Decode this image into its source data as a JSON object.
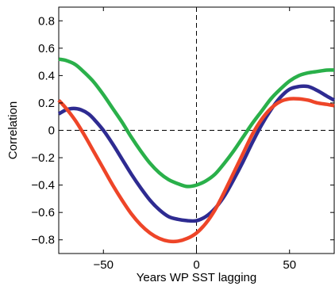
{
  "chart_data": {
    "type": "line",
    "title": "",
    "xlabel": "Years WP SST lagging",
    "ylabel": "Correlation",
    "xlim": [
      -74,
      74
    ],
    "ylim": [
      -0.9,
      0.9
    ],
    "xticks": [
      -50,
      0,
      50
    ],
    "xtick_labels": [
      "−50",
      "0",
      "50"
    ],
    "yticks": [
      0.8,
      0.6,
      0.4,
      0.2,
      0,
      -0.2,
      -0.4,
      -0.6,
      -0.8
    ],
    "ytick_labels": [
      "0.8",
      "0.6",
      "0.4",
      "0.2",
      "0",
      "−0.2",
      "−0.4",
      "−0.6",
      "−0.8"
    ],
    "reference_lines": {
      "y": 0,
      "x": 0,
      "style": "dashed"
    },
    "grid": false,
    "legend": "none",
    "series": [
      {
        "color": "#2ab04a",
        "x": [
          -74,
          -70,
          -65,
          -60,
          -55,
          -50,
          -45,
          -40,
          -35,
          -30,
          -25,
          -20,
          -15,
          -10,
          -5,
          0,
          5,
          10,
          15,
          20,
          25,
          30,
          35,
          40,
          45,
          50,
          55,
          60,
          65,
          70,
          74
        ],
        "y": [
          0.52,
          0.51,
          0.48,
          0.42,
          0.35,
          0.26,
          0.16,
          0.06,
          -0.05,
          -0.15,
          -0.24,
          -0.31,
          -0.36,
          -0.39,
          -0.41,
          -0.4,
          -0.37,
          -0.32,
          -0.24,
          -0.15,
          -0.05,
          0.05,
          0.14,
          0.23,
          0.3,
          0.36,
          0.4,
          0.42,
          0.43,
          0.44,
          0.44
        ]
      },
      {
        "color": "#2e2b91",
        "x": [
          -74,
          -70,
          -66,
          -62,
          -58,
          -55,
          -50,
          -45,
          -40,
          -35,
          -30,
          -25,
          -20,
          -15,
          -10,
          -5,
          0,
          5,
          10,
          15,
          20,
          25,
          30,
          35,
          40,
          45,
          50,
          55,
          60,
          65,
          70,
          74
        ],
        "y": [
          0.12,
          0.15,
          0.16,
          0.15,
          0.12,
          0.08,
          0.0,
          -0.1,
          -0.21,
          -0.32,
          -0.42,
          -0.51,
          -0.58,
          -0.63,
          -0.65,
          -0.66,
          -0.66,
          -0.63,
          -0.57,
          -0.48,
          -0.36,
          -0.23,
          -0.09,
          0.04,
          0.15,
          0.24,
          0.3,
          0.32,
          0.32,
          0.29,
          0.25,
          0.22
        ]
      },
      {
        "color": "#ee4528",
        "x": [
          -74,
          -70,
          -65,
          -60,
          -55,
          -50,
          -45,
          -40,
          -35,
          -30,
          -25,
          -20,
          -15,
          -10,
          -5,
          0,
          5,
          10,
          15,
          20,
          25,
          30,
          35,
          40,
          45,
          50,
          55,
          60,
          65,
          70,
          74
        ],
        "y": [
          0.22,
          0.16,
          0.07,
          -0.04,
          -0.16,
          -0.28,
          -0.4,
          -0.51,
          -0.61,
          -0.69,
          -0.75,
          -0.79,
          -0.81,
          -0.81,
          -0.79,
          -0.75,
          -0.68,
          -0.58,
          -0.45,
          -0.31,
          -0.17,
          -0.03,
          0.08,
          0.16,
          0.21,
          0.23,
          0.23,
          0.22,
          0.2,
          0.19,
          0.18
        ]
      }
    ]
  }
}
